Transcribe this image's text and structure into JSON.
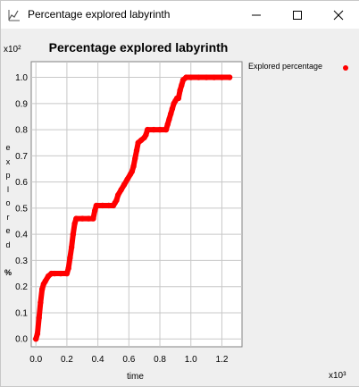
{
  "window": {
    "title": "Percentage explored labyrinth",
    "controls": {
      "minimize": "—",
      "maximize": "☐",
      "close": "✕"
    }
  },
  "colors": {
    "series": "#ff0000",
    "grid": "#c8c8c8",
    "plot_bg": "#ffffff"
  },
  "chart_data": {
    "type": "scatter",
    "title": "Percentage explored labyrinth",
    "xlabel": "time",
    "ylabel": "explored %",
    "y_exponent_label": "x10²",
    "x_exponent_label": "x10³",
    "x_ticks": [
      "0.0",
      "0.2",
      "0.4",
      "0.6",
      "0.8",
      "1.0",
      "1.2"
    ],
    "y_ticks": [
      "0.0",
      "0.1",
      "0.2",
      "0.3",
      "0.4",
      "0.5",
      "0.6",
      "0.7",
      "0.8",
      "0.9",
      "1.0"
    ],
    "xlim": [
      -0.03,
      1.33
    ],
    "ylim": [
      -0.03,
      1.06
    ],
    "grid": true,
    "legend_position": "right",
    "series": [
      {
        "name": "Explored percentage",
        "color": "#ff0000",
        "points": [
          [
            0.0,
            0.0
          ],
          [
            0.01,
            0.02
          ],
          [
            0.02,
            0.08
          ],
          [
            0.03,
            0.14
          ],
          [
            0.04,
            0.19
          ],
          [
            0.05,
            0.21
          ],
          [
            0.06,
            0.22
          ],
          [
            0.08,
            0.24
          ],
          [
            0.1,
            0.25
          ],
          [
            0.12,
            0.25
          ],
          [
            0.16,
            0.25
          ],
          [
            0.2,
            0.25
          ],
          [
            0.21,
            0.27
          ],
          [
            0.22,
            0.31
          ],
          [
            0.23,
            0.35
          ],
          [
            0.24,
            0.4
          ],
          [
            0.25,
            0.44
          ],
          [
            0.26,
            0.46
          ],
          [
            0.3,
            0.46
          ],
          [
            0.34,
            0.46
          ],
          [
            0.37,
            0.46
          ],
          [
            0.38,
            0.49
          ],
          [
            0.39,
            0.51
          ],
          [
            0.43,
            0.51
          ],
          [
            0.47,
            0.51
          ],
          [
            0.5,
            0.51
          ],
          [
            0.51,
            0.52
          ],
          [
            0.52,
            0.53
          ],
          [
            0.53,
            0.55
          ],
          [
            0.55,
            0.57
          ],
          [
            0.57,
            0.59
          ],
          [
            0.59,
            0.61
          ],
          [
            0.61,
            0.63
          ],
          [
            0.62,
            0.64
          ],
          [
            0.63,
            0.66
          ],
          [
            0.64,
            0.69
          ],
          [
            0.65,
            0.72
          ],
          [
            0.66,
            0.75
          ],
          [
            0.68,
            0.76
          ],
          [
            0.7,
            0.77
          ],
          [
            0.71,
            0.78
          ],
          [
            0.72,
            0.8
          ],
          [
            0.76,
            0.8
          ],
          [
            0.8,
            0.8
          ],
          [
            0.84,
            0.8
          ],
          [
            0.85,
            0.82
          ],
          [
            0.86,
            0.84
          ],
          [
            0.87,
            0.86
          ],
          [
            0.88,
            0.88
          ],
          [
            0.89,
            0.9
          ],
          [
            0.9,
            0.91
          ],
          [
            0.91,
            0.92
          ],
          [
            0.92,
            0.92
          ],
          [
            0.93,
            0.95
          ],
          [
            0.94,
            0.97
          ],
          [
            0.95,
            0.99
          ],
          [
            0.97,
            1.0
          ],
          [
            1.0,
            1.0
          ],
          [
            1.05,
            1.0
          ],
          [
            1.1,
            1.0
          ],
          [
            1.15,
            1.0
          ],
          [
            1.2,
            1.0
          ],
          [
            1.25,
            1.0
          ]
        ]
      }
    ]
  }
}
